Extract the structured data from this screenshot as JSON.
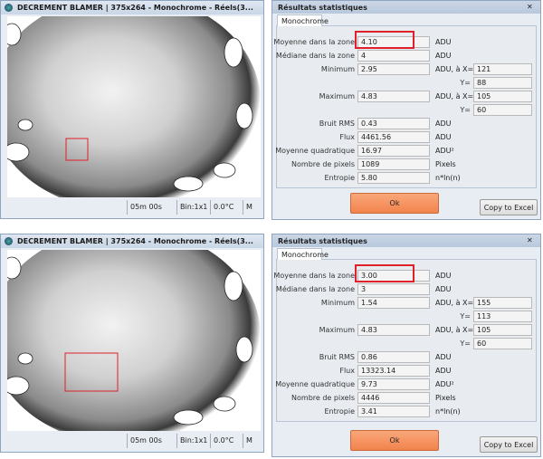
{
  "panels": [
    {
      "image_window": {
        "title": "DECREMENT BLAMER | 375x264 - Monochrome - Réels(3...",
        "status": [
          "05m 00s",
          "Bin:1x1",
          "0.0°C",
          "M"
        ]
      },
      "stats_dialog": {
        "title": "Résultats statistiques",
        "tab": "Monochrome",
        "rows": [
          {
            "label": "Moyenne dans la zone",
            "value": "4.10",
            "unit": "ADU"
          },
          {
            "label": "Médiane dans la zone",
            "value": "4",
            "unit": "ADU"
          },
          {
            "label": "Minimum",
            "value": "2.95",
            "unit": "ADU, à X=",
            "x": "121",
            "y_label": "Y=",
            "y": "88"
          },
          {
            "label": "Maximum",
            "value": "4.83",
            "unit": "ADU, à X=",
            "x": "105",
            "y_label": "Y=",
            "y": "60"
          },
          {
            "label": "Bruit RMS",
            "value": "0.43",
            "unit": "ADU"
          },
          {
            "label": "Flux",
            "value": "4461.56",
            "unit": "ADU"
          },
          {
            "label": "Moyenne quadratique",
            "value": "16.97",
            "unit": "ADU²"
          },
          {
            "label": "Nombre de pixels",
            "value": "1089",
            "unit": "Pixels"
          },
          {
            "label": "Entropie",
            "value": "5.80",
            "unit": "n*ln(n)"
          }
        ],
        "ok": "Ok",
        "copy": "Copy to Excel"
      }
    },
    {
      "image_window": {
        "title": "DECREMENT BLAMER | 375x264 - Monochrome - Réels(3...",
        "status": [
          "05m 00s",
          "Bin:1x1",
          "0.0°C",
          "M"
        ]
      },
      "stats_dialog": {
        "title": "Résultats statistiques",
        "tab": "Monochrome",
        "rows": [
          {
            "label": "Moyenne dans la zone",
            "value": "3.00",
            "unit": "ADU"
          },
          {
            "label": "Médiane dans la zone",
            "value": "3",
            "unit": "ADU"
          },
          {
            "label": "Minimum",
            "value": "1.54",
            "unit": "ADU, à X=",
            "x": "155",
            "y_label": "Y=",
            "y": "113"
          },
          {
            "label": "Maximum",
            "value": "4.83",
            "unit": "ADU, à X=",
            "x": "105",
            "y_label": "Y=",
            "y": "60"
          },
          {
            "label": "Bruit RMS",
            "value": "0.86",
            "unit": "ADU"
          },
          {
            "label": "Flux",
            "value": "13323.14",
            "unit": "ADU"
          },
          {
            "label": "Moyenne quadratique",
            "value": "9.73",
            "unit": "ADU²"
          },
          {
            "label": "Nombre de pixels",
            "value": "4446",
            "unit": "Pixels"
          },
          {
            "label": "Entropie",
            "value": "3.41",
            "unit": "n*ln(n)"
          }
        ],
        "ok": "Ok",
        "copy": "Copy to Excel"
      }
    }
  ]
}
